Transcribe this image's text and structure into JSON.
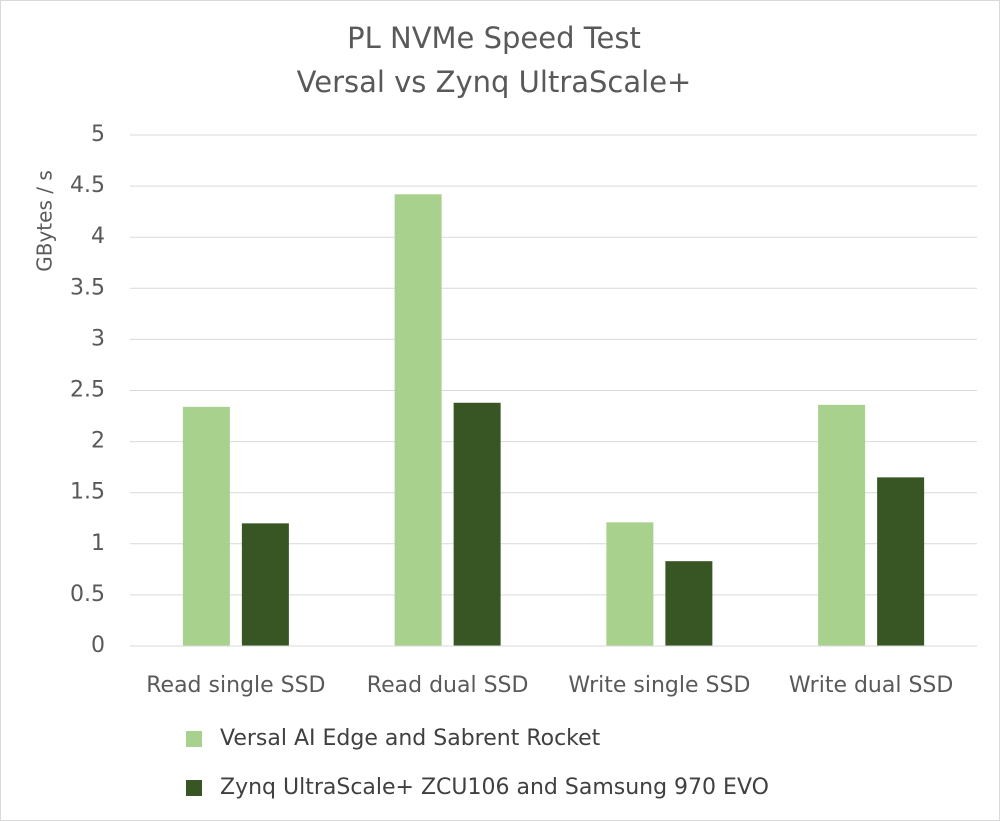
{
  "chart_data": {
    "type": "bar",
    "title": "PL NVMe Speed Test",
    "subtitle": "Versal vs Zynq UltraScale+",
    "y_label": "GBytes / s",
    "categories": [
      "Read single SSD",
      "Read dual SSD",
      "Write single SSD",
      "Write dual SSD"
    ],
    "series": [
      {
        "name": "Versal AI Edge and Sabrent Rocket",
        "color": "#a9d18e",
        "values": [
          2.34,
          4.42,
          1.21,
          2.36
        ]
      },
      {
        "name": "Zynq UltraScale+ ZCU106 and Samsung 970 EVO",
        "color": "#375623",
        "values": [
          1.2,
          2.38,
          0.83,
          1.65
        ]
      }
    ],
    "ylim": [
      0,
      5
    ],
    "yticks": [
      0,
      0.5,
      1,
      1.5,
      2,
      2.5,
      3,
      3.5,
      4,
      4.5,
      5
    ],
    "grid": true,
    "legend": "bottom"
  }
}
